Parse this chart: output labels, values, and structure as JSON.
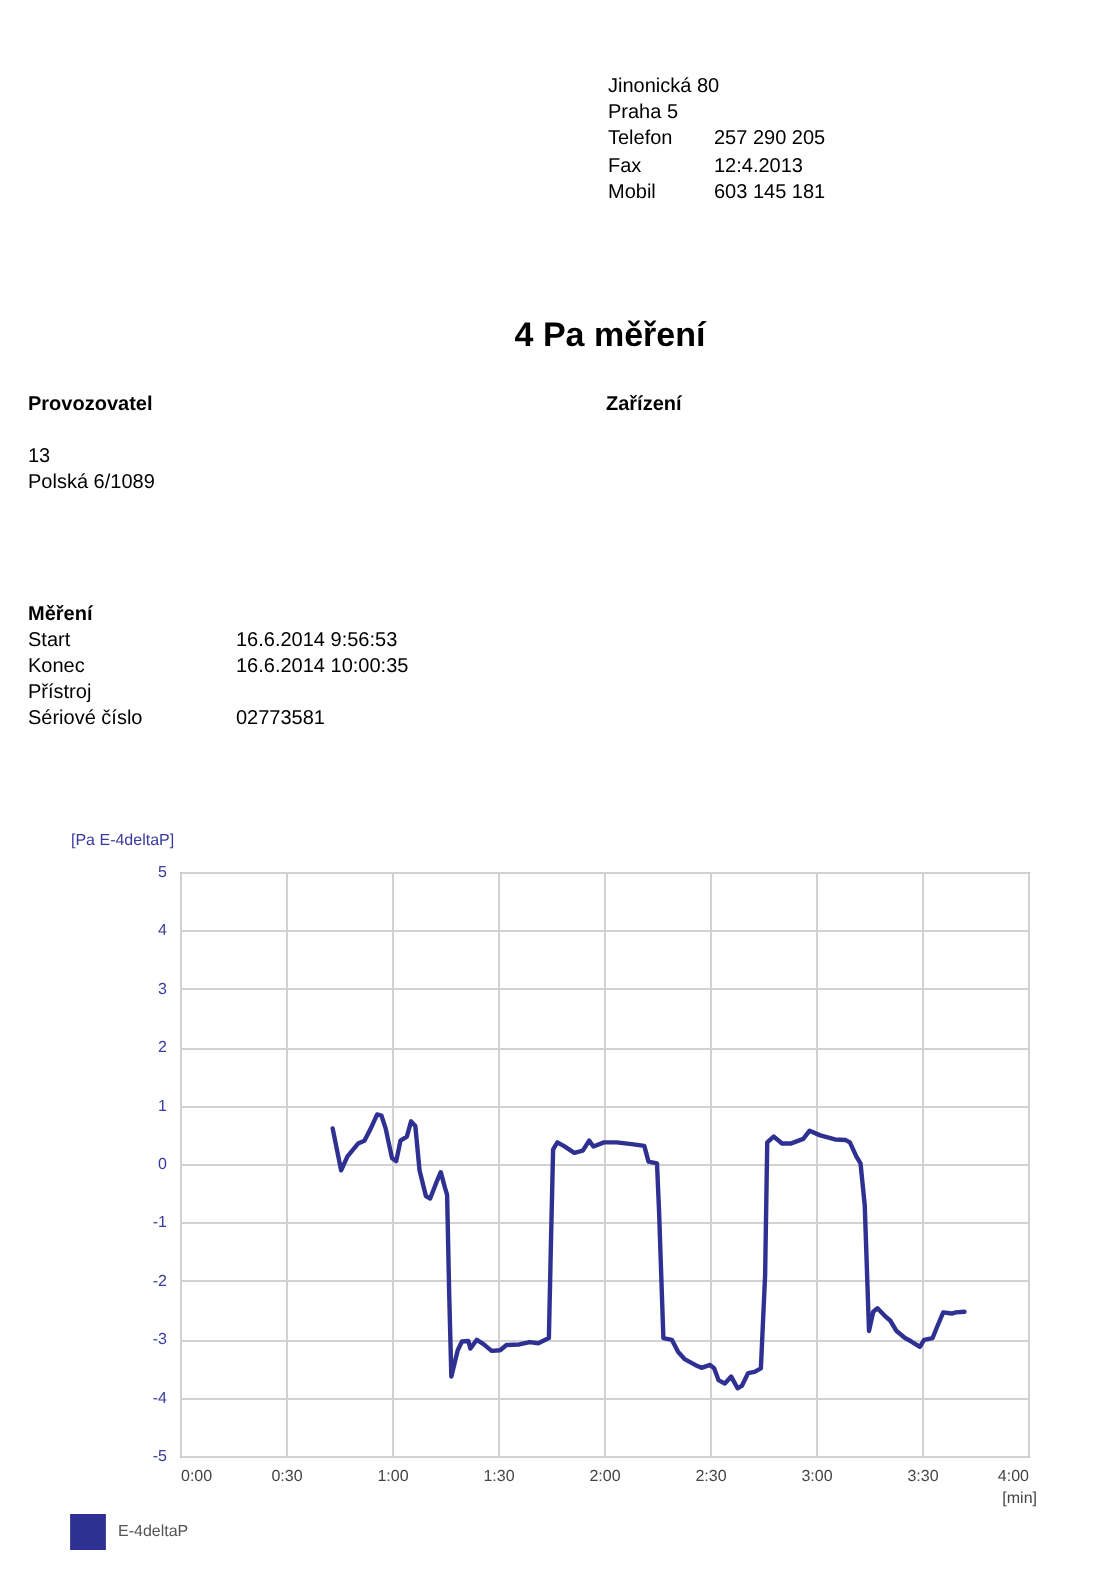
{
  "chart_data": {
    "type": "line",
    "title": "4 Pa měření",
    "xlabel": "[min]",
    "ylabel": "[Pa E-4deltaP]",
    "annotations": [
      "Jinonická 80",
      "Praha 5",
      "Telefon",
      "257 290 205",
      "Fax",
      "12:4.2013",
      "Mobil",
      "603 145 181",
      "Provozovatel",
      "Zařízení",
      "13",
      "Polská 6/1089",
      "Měření",
      "Start",
      "16.6.2014 9:56:53",
      "Konec",
      "16.6.2014 10:00:35",
      "Přístroj",
      "Sériové číslo",
      "02773581"
    ],
    "x": [
      0.72,
      0.76,
      0.79,
      0.84,
      0.87,
      0.9,
      0.93,
      0.95,
      0.97,
      1.0,
      1.02,
      1.04,
      1.07,
      1.09,
      1.11,
      1.13,
      1.16,
      1.18,
      1.21,
      1.23,
      1.25,
      1.26,
      1.27,
      1.28,
      1.31,
      1.33,
      1.36,
      1.37,
      1.4,
      1.43,
      1.47,
      1.51,
      1.54,
      1.6,
      1.65,
      1.69,
      1.74,
      1.75,
      1.76,
      1.78,
      1.81,
      1.86,
      1.9,
      1.93,
      1.95,
      2.0,
      2.06,
      2.13,
      2.19,
      2.21,
      2.25,
      2.26,
      2.28,
      2.32,
      2.35,
      2.38,
      2.43,
      2.46,
      2.5,
      2.52,
      2.54,
      2.57,
      2.6,
      2.63,
      2.65,
      2.68,
      2.71,
      2.74,
      2.76,
      2.77,
      2.8,
      2.84,
      2.88,
      2.94,
      2.97,
      3.02,
      3.09,
      3.14,
      3.16,
      3.19,
      3.21,
      3.23,
      3.25,
      3.27,
      3.29,
      3.33,
      3.35,
      3.38,
      3.42,
      3.45,
      3.49,
      3.51,
      3.55,
      3.57,
      3.6,
      3.64,
      3.66,
      3.7
    ],
    "series": [
      {
        "name": "E-4deltaP",
        "color": "#2e3192",
        "values": [
          0.61,
          -0.11,
          0.13,
          0.35,
          0.4,
          0.61,
          0.85,
          0.83,
          0.61,
          0.1,
          0.05,
          0.4,
          0.47,
          0.73,
          0.65,
          -0.11,
          -0.55,
          -0.59,
          -0.31,
          -0.14,
          -0.41,
          -0.53,
          -2.26,
          -3.64,
          -3.19,
          -3.04,
          -3.03,
          -3.16,
          -3.01,
          -3.08,
          -3.2,
          -3.19,
          -3.1,
          -3.09,
          -3.05,
          -3.07,
          -2.98,
          -1.31,
          0.25,
          0.37,
          0.31,
          0.19,
          0.23,
          0.4,
          0.3,
          0.37,
          0.37,
          0.34,
          0.31,
          0.04,
          0.01,
          -0.83,
          -2.98,
          -3.01,
          -3.22,
          -3.34,
          -3.44,
          -3.49,
          -3.44,
          -3.5,
          -3.7,
          -3.76,
          -3.64,
          -3.84,
          -3.8,
          -3.58,
          -3.56,
          -3.5,
          -1.9,
          0.37,
          0.47,
          0.35,
          0.35,
          0.43,
          0.57,
          0.49,
          0.42,
          0.41,
          0.37,
          0.13,
          0.01,
          -0.71,
          -2.86,
          -2.53,
          -2.47,
          -2.62,
          -2.68,
          -2.86,
          -2.98,
          -3.04,
          -3.13,
          -3.01,
          -2.98,
          -2.8,
          -2.54,
          -2.56,
          -2.54,
          -2.53
        ]
      }
    ],
    "xlim": [
      0,
      4
    ],
    "xticks": [
      {
        "value": 0,
        "label": "0:00"
      },
      {
        "value": 0.5,
        "label": "0:30"
      },
      {
        "value": 1,
        "label": "1:00"
      },
      {
        "value": 1.5,
        "label": "1:30"
      },
      {
        "value": 2,
        "label": "2:00"
      },
      {
        "value": 2.5,
        "label": "2:30"
      },
      {
        "value": 3,
        "label": "3:00"
      },
      {
        "value": 3.5,
        "label": "3:30"
      },
      {
        "value": 4,
        "label": "4:00"
      }
    ],
    "ylim": [
      -5,
      5
    ],
    "yticks": [
      -5,
      -4,
      -3,
      -2,
      -1,
      0,
      1,
      2,
      3,
      4,
      5
    ],
    "grid": true,
    "legend": "bottom left",
    "line_style": "solid"
  }
}
